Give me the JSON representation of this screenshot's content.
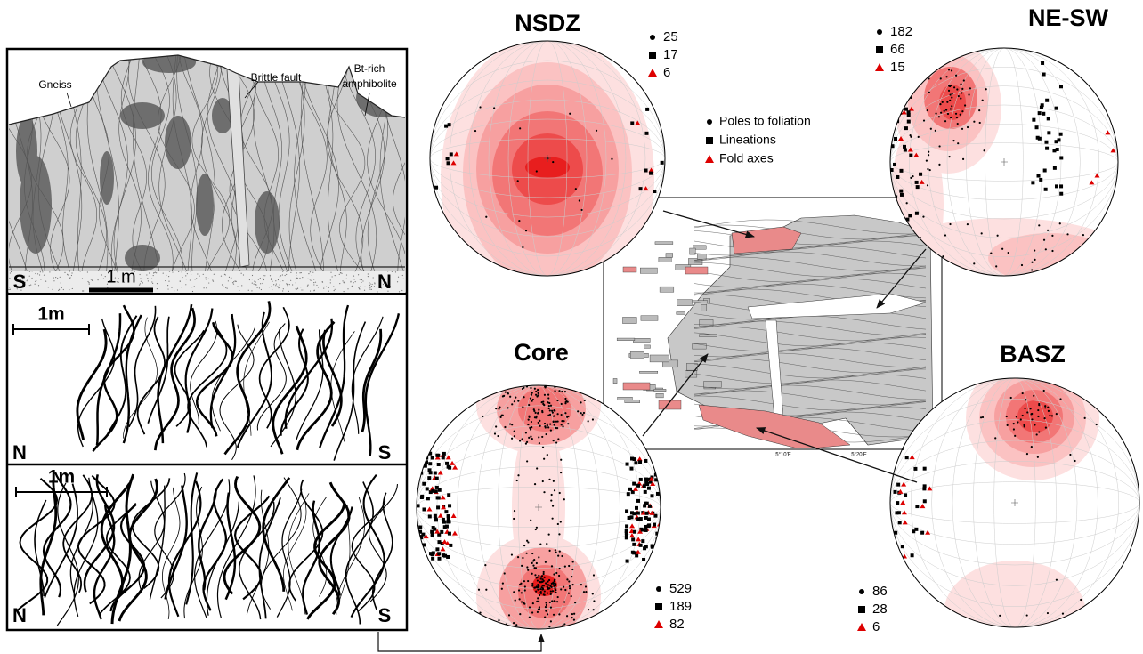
{
  "cross_sections": [
    {
      "labels": [
        "Gneiss",
        "Brittle fault",
        "Bt-rich",
        "amphibolite"
      ],
      "scale": "1 m",
      "left": "S",
      "right": "N"
    },
    {
      "scale": "1m",
      "left": "N",
      "right": "S"
    },
    {
      "scale": "1m",
      "left": "N",
      "right": "S"
    }
  ],
  "stereonets": [
    {
      "title": "NSDZ",
      "counts": [
        25,
        17,
        6
      ]
    },
    {
      "title": "NE-SW",
      "counts": [
        182,
        66,
        15
      ]
    },
    {
      "title": "Core",
      "counts": [
        529,
        189,
        82
      ]
    },
    {
      "title": "BASZ",
      "counts": [
        86,
        28,
        6
      ]
    }
  ],
  "legend": [
    "Poles to foliation",
    "Lineations",
    "Fold axes"
  ],
  "map": {
    "longitudes": [
      "5°10'E",
      "5°20'E"
    ]
  }
}
